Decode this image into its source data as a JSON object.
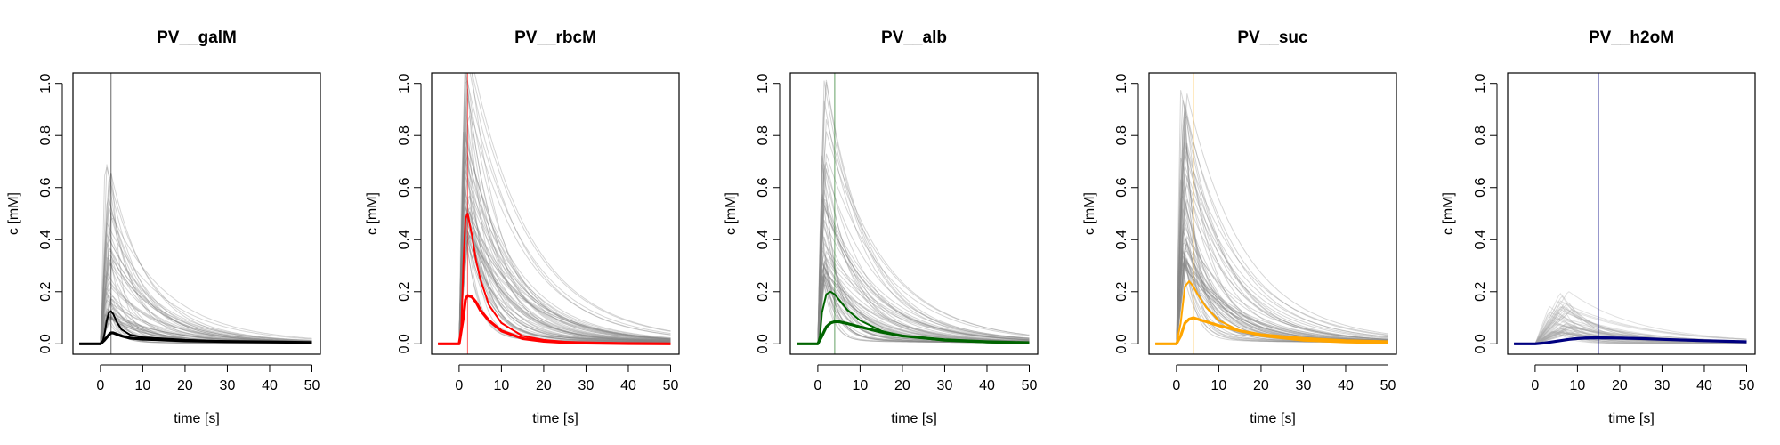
{
  "chart_data": [
    {
      "type": "line",
      "title": "PV__galM",
      "xlabel": "time [s]",
      "ylabel": "c [mM]",
      "xlim": [
        -6.5,
        52
      ],
      "ylim": [
        -0.04,
        1.04
      ],
      "xticks": [
        "0",
        "10",
        "20",
        "30",
        "40",
        "50"
      ],
      "yticks": [
        "0.0",
        "0.2",
        "0.4",
        "0.6",
        "0.8",
        "1.0"
      ],
      "grid": false,
      "color": "#000000",
      "vline": 2.5,
      "ensemble": {
        "color": "#888888",
        "peak_min": 0.1,
        "peak_max": 0.68,
        "peak_time": 1.5
      },
      "series": [
        {
          "x": [
            -5,
            0,
            0.5,
            1,
            1.5,
            2,
            2.5,
            3,
            4,
            5,
            7,
            10,
            15,
            20,
            30,
            40,
            50
          ],
          "y": [
            0,
            0,
            0.005,
            0.04,
            0.09,
            0.12,
            0.125,
            0.115,
            0.08,
            0.055,
            0.035,
            0.025,
            0.02,
            0.015,
            0.01,
            0.007,
            0.005
          ]
        },
        {
          "x": [
            -5,
            0,
            1,
            2,
            2.5,
            3,
            4,
            5,
            7,
            10,
            15,
            20,
            30,
            40,
            50
          ],
          "y": [
            0,
            0,
            0.015,
            0.035,
            0.042,
            0.042,
            0.036,
            0.03,
            0.022,
            0.018,
            0.015,
            0.012,
            0.009,
            0.007,
            0.005
          ]
        }
      ]
    },
    {
      "type": "line",
      "title": "PV__rbcM",
      "xlabel": "time [s]",
      "ylabel": "c [mM]",
      "xlim": [
        -6.5,
        52
      ],
      "ylim": [
        -0.04,
        1.04
      ],
      "xticks": [
        "0",
        "10",
        "20",
        "30",
        "40",
        "50"
      ],
      "yticks": [
        "0.0",
        "0.2",
        "0.4",
        "0.6",
        "0.8",
        "1.0"
      ],
      "grid": false,
      "color": "#ff0000",
      "vline": 2,
      "ensemble": {
        "color": "#888888",
        "peak_min": 0.4,
        "peak_max": 1.2,
        "peak_time": 1.2
      },
      "series": [
        {
          "x": [
            -5,
            0,
            0.5,
            1,
            1.5,
            2,
            3,
            4,
            5,
            7,
            10,
            15,
            20,
            25,
            30,
            40,
            50
          ],
          "y": [
            0,
            0,
            0.05,
            0.3,
            0.48,
            0.5,
            0.42,
            0.32,
            0.25,
            0.15,
            0.08,
            0.03,
            0.015,
            0.008,
            0.005,
            0.002,
            0.001
          ]
        },
        {
          "x": [
            -5,
            0,
            1,
            1.5,
            2,
            3,
            4,
            5,
            7,
            10,
            15,
            20,
            25,
            30,
            40,
            50
          ],
          "y": [
            0,
            0,
            0.1,
            0.17,
            0.185,
            0.18,
            0.16,
            0.13,
            0.09,
            0.05,
            0.02,
            0.01,
            0.005,
            0.003,
            0.001,
            0
          ]
        }
      ]
    },
    {
      "type": "line",
      "title": "PV__alb",
      "xlabel": "time [s]",
      "ylabel": "c [mM]",
      "xlim": [
        -6.5,
        52
      ],
      "ylim": [
        -0.04,
        1.04
      ],
      "xticks": [
        "0",
        "10",
        "20",
        "30",
        "40",
        "50"
      ],
      "yticks": [
        "0.0",
        "0.2",
        "0.4",
        "0.6",
        "0.8",
        "1.0"
      ],
      "grid": false,
      "color": "#006400",
      "vline": 4,
      "ensemble": {
        "color": "#888888",
        "peak_min": 0.25,
        "peak_max": 1.0,
        "peak_time": 1.0
      },
      "series": [
        {
          "x": [
            -5,
            0,
            0.5,
            1,
            2,
            3,
            4,
            5,
            7,
            10,
            15,
            20,
            30,
            40,
            50
          ],
          "y": [
            0,
            0,
            0.03,
            0.12,
            0.19,
            0.2,
            0.19,
            0.17,
            0.13,
            0.09,
            0.05,
            0.03,
            0.012,
            0.005,
            0.002
          ]
        },
        {
          "x": [
            -5,
            0,
            1,
            2,
            3,
            4,
            5,
            7,
            10,
            15,
            20,
            30,
            40,
            50
          ],
          "y": [
            0,
            0,
            0.03,
            0.065,
            0.08,
            0.085,
            0.085,
            0.078,
            0.065,
            0.045,
            0.03,
            0.015,
            0.008,
            0.004
          ]
        }
      ]
    },
    {
      "type": "line",
      "title": "PV__suc",
      "xlabel": "time [s]",
      "ylabel": "c [mM]",
      "xlim": [
        -6.5,
        52
      ],
      "ylim": [
        -0.04,
        1.04
      ],
      "xticks": [
        "0",
        "10",
        "20",
        "30",
        "40",
        "50"
      ],
      "yticks": [
        "0.0",
        "0.2",
        "0.4",
        "0.6",
        "0.8",
        "1.0"
      ],
      "grid": false,
      "color": "#ffa500",
      "vline": 4,
      "ensemble": {
        "color": "#888888",
        "peak_min": 0.3,
        "peak_max": 0.97,
        "peak_time": 1.3
      },
      "series": [
        {
          "x": [
            -5,
            0,
            1,
            2,
            3,
            4,
            5,
            7,
            10,
            15,
            20,
            30,
            40,
            50
          ],
          "y": [
            0,
            0,
            0.08,
            0.22,
            0.24,
            0.22,
            0.19,
            0.14,
            0.09,
            0.05,
            0.03,
            0.012,
            0.005,
            0.002
          ]
        },
        {
          "x": [
            -5,
            0,
            1,
            2,
            3,
            4,
            5,
            7,
            10,
            15,
            20,
            30,
            40,
            50
          ],
          "y": [
            0,
            0,
            0.03,
            0.08,
            0.095,
            0.1,
            0.095,
            0.085,
            0.07,
            0.05,
            0.035,
            0.02,
            0.012,
            0.008
          ]
        }
      ]
    },
    {
      "type": "line",
      "title": "PV__h2oM",
      "xlabel": "time [s]",
      "ylabel": "c [mM]",
      "xlim": [
        -6.5,
        52
      ],
      "ylim": [
        -0.04,
        1.04
      ],
      "xticks": [
        "0",
        "10",
        "20",
        "30",
        "40",
        "50"
      ],
      "yticks": [
        "0.0",
        "0.2",
        "0.4",
        "0.6",
        "0.8",
        "1.0"
      ],
      "grid": false,
      "color": "#000080",
      "vline": 15,
      "ensemble": {
        "color": "#aaaaaa",
        "peak_min": 0.04,
        "peak_max": 0.2,
        "peak_time": 5
      },
      "series": [
        {
          "x": [
            -5,
            0,
            2,
            5,
            8,
            10,
            12,
            15,
            20,
            25,
            30,
            40,
            50
          ],
          "y": [
            0,
            0,
            0.003,
            0.01,
            0.018,
            0.022,
            0.024,
            0.025,
            0.023,
            0.02,
            0.017,
            0.012,
            0.008
          ]
        },
        {
          "x": [
            -5,
            0,
            2,
            5,
            8,
            10,
            12,
            15,
            20,
            25,
            30,
            40,
            50
          ],
          "y": [
            0,
            0,
            0.003,
            0.01,
            0.017,
            0.02,
            0.022,
            0.023,
            0.022,
            0.02,
            0.017,
            0.012,
            0.008
          ]
        }
      ]
    }
  ]
}
